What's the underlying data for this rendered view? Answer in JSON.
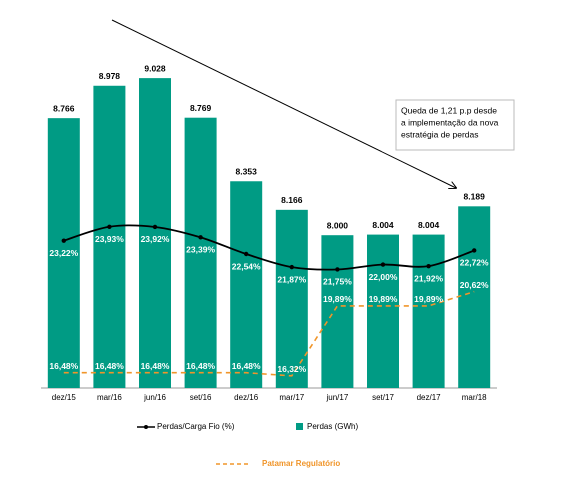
{
  "chart_data": {
    "type": "bar-line",
    "categories": [
      "dez/15",
      "mar/16",
      "jun/16",
      "set/16",
      "dez/16",
      "mar/17",
      "jun/17",
      "set/17",
      "dez/17",
      "mar/18"
    ],
    "ylim": [
      7000,
      9500
    ],
    "y2lim": [
      15.7,
      35.2
    ],
    "series": [
      {
        "name": "Perdas (GWh)",
        "type": "bar",
        "color": "#009b84",
        "values": [
          8766,
          8978,
          9028,
          8769,
          8353,
          8166,
          8000,
          8004,
          8004,
          8189
        ],
        "value_labels": [
          "8.766",
          "8.978",
          "9.028",
          "8.769",
          "8.353",
          "8.166",
          "8.000",
          "8.004",
          "8.004",
          "8.189"
        ]
      },
      {
        "name": "Perdas/Carga Fio (%)",
        "type": "line",
        "axis": "y2",
        "color": "#000000",
        "style": "solid",
        "values": [
          23.22,
          23.93,
          23.92,
          23.39,
          22.54,
          21.87,
          21.75,
          22.0,
          21.92,
          22.72
        ],
        "value_labels": [
          "23,22%",
          "23,93%",
          "23,92%",
          "23,39%",
          "22,54%",
          "21,87%",
          "21,75%",
          "22,00%",
          "21,92%",
          "22,72%"
        ]
      },
      {
        "name": "Patamar Regulatório",
        "type": "line",
        "axis": "y2",
        "color": "#f0952a",
        "style": "dashed",
        "values": [
          16.48,
          16.48,
          16.48,
          16.48,
          16.48,
          16.32,
          19.89,
          19.89,
          19.89,
          20.62
        ],
        "value_labels": [
          "16,48%",
          "16,48%",
          "16,48%",
          "16,48%",
          "16,48%",
          "16,32%",
          "19,89%",
          "19,89%",
          "19,89%",
          "20,62%"
        ]
      }
    ],
    "annotation": {
      "lines": [
        "Queda de 1,21 p.p desde",
        "a implementação da  nova",
        "estratégia de perdas"
      ]
    }
  }
}
